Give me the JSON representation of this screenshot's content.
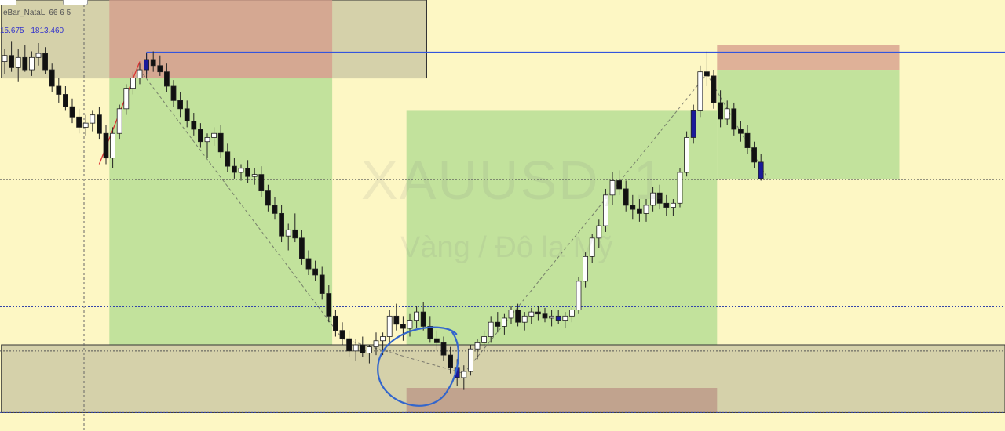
{
  "header": {
    "indicator_label": "eBar_NataLi 66 6 5",
    "readout_values": [
      "15.675",
      "1813.460"
    ]
  },
  "watermark": {
    "symbol": "XAUUSD, 1",
    "description": "Vàng / Đô la Mỹ"
  },
  "colors": {
    "background": "#fdf7c4",
    "target_zone": "#a8d88c",
    "stop_zone": "#d49a8a",
    "supply_zone": "#8a8a7a",
    "blue_line": "#3355dd",
    "bull_candle": "#ffffff",
    "bear_candle": "#111111",
    "blue_candle": "#1a1a9a",
    "circle": "#3366cc"
  },
  "chart_data": {
    "type": "candlestick",
    "symbol": "XAUUSD",
    "timeframe": "1",
    "title": "XAUUSD, 1",
    "subtitle": "Vàng / Đô la Mỹ",
    "ylim": [
      1795.0,
      1816.0
    ],
    "readout": [
      15.675,
      1813.46
    ],
    "grid": false,
    "blue_level": 1813.46,
    "levels": [
      1812.2,
      1807.25,
      1801.05,
      1798.9,
      1795.9
    ],
    "candles": [
      [
        1813.0,
        1813.6,
        1812.4,
        1813.3
      ],
      [
        1813.3,
        1814.0,
        1812.5,
        1812.7
      ],
      [
        1812.7,
        1813.6,
        1812.0,
        1813.2
      ],
      [
        1813.2,
        1813.8,
        1812.5,
        1812.6
      ],
      [
        1812.6,
        1813.5,
        1812.3,
        1813.2
      ],
      [
        1813.2,
        1813.9,
        1812.8,
        1813.4
      ],
      [
        1813.4,
        1813.7,
        1812.4,
        1812.6
      ],
      [
        1812.6,
        1812.9,
        1811.5,
        1811.8
      ],
      [
        1811.8,
        1812.2,
        1811.0,
        1811.4
      ],
      [
        1811.4,
        1811.8,
        1810.6,
        1810.8
      ],
      [
        1810.8,
        1811.2,
        1810.0,
        1810.3
      ],
      [
        1810.3,
        1810.7,
        1809.5,
        1809.8
      ],
      [
        1809.8,
        1810.4,
        1809.4,
        1810.0
      ],
      [
        1810.0,
        1810.6,
        1809.6,
        1810.4
      ],
      [
        1810.4,
        1810.8,
        1809.2,
        1809.5
      ],
      [
        1809.5,
        1809.9,
        1808.0,
        1808.3
      ],
      [
        1808.3,
        1809.8,
        1807.8,
        1809.5
      ],
      [
        1809.5,
        1810.9,
        1809.2,
        1810.7
      ],
      [
        1810.7,
        1811.9,
        1810.4,
        1811.7
      ],
      [
        1811.7,
        1812.5,
        1811.4,
        1812.2
      ],
      [
        1812.2,
        1812.9,
        1811.9,
        1812.6
      ],
      [
        1812.6,
        1813.4,
        1812.2,
        1813.1
      ],
      [
        1813.1,
        1813.5,
        1812.5,
        1812.8
      ],
      [
        1812.8,
        1813.3,
        1812.3,
        1812.5
      ],
      [
        1812.5,
        1812.9,
        1811.5,
        1811.8
      ],
      [
        1811.8,
        1812.1,
        1810.8,
        1811.1
      ],
      [
        1811.1,
        1811.5,
        1810.3,
        1810.7
      ],
      [
        1810.7,
        1811.1,
        1809.8,
        1810.1
      ],
      [
        1810.1,
        1810.5,
        1809.4,
        1809.7
      ],
      [
        1809.7,
        1810.0,
        1808.8,
        1809.1
      ],
      [
        1809.1,
        1809.5,
        1808.3,
        1809.3
      ],
      [
        1809.3,
        1809.8,
        1808.9,
        1809.5
      ],
      [
        1809.5,
        1809.9,
        1808.3,
        1808.6
      ],
      [
        1808.6,
        1809.0,
        1807.6,
        1807.9
      ],
      [
        1807.9,
        1808.3,
        1807.3,
        1807.6
      ],
      [
        1807.6,
        1808.0,
        1807.2,
        1807.8
      ],
      [
        1807.8,
        1808.2,
        1807.1,
        1807.4
      ],
      [
        1807.4,
        1807.8,
        1807.0,
        1807.5
      ],
      [
        1807.5,
        1807.9,
        1806.4,
        1806.7
      ],
      [
        1806.7,
        1807.0,
        1805.7,
        1806.0
      ],
      [
        1806.0,
        1806.4,
        1805.3,
        1805.6
      ],
      [
        1805.6,
        1806.0,
        1804.2,
        1804.5
      ],
      [
        1804.5,
        1805.1,
        1803.8,
        1804.8
      ],
      [
        1804.8,
        1805.6,
        1804.2,
        1804.4
      ],
      [
        1804.4,
        1804.8,
        1803.1,
        1803.4
      ],
      [
        1803.4,
        1803.8,
        1802.6,
        1802.9
      ],
      [
        1802.9,
        1803.3,
        1802.3,
        1802.6
      ],
      [
        1802.6,
        1803.0,
        1801.4,
        1801.7
      ],
      [
        1801.7,
        1802.1,
        1800.3,
        1800.6
      ],
      [
        1800.6,
        1800.9,
        1799.6,
        1799.9
      ],
      [
        1799.9,
        1800.3,
        1799.2,
        1799.5
      ],
      [
        1799.5,
        1799.9,
        1798.6,
        1798.9
      ],
      [
        1798.9,
        1799.5,
        1798.4,
        1799.2
      ],
      [
        1799.2,
        1799.6,
        1798.6,
        1798.8
      ],
      [
        1798.8,
        1799.2,
        1798.3,
        1799.1
      ],
      [
        1799.1,
        1799.8,
        1798.7,
        1799.4
      ],
      [
        1799.4,
        1799.8,
        1798.7,
        1799.6
      ],
      [
        1799.6,
        1800.9,
        1799.3,
        1800.6
      ],
      [
        1800.6,
        1801.2,
        1799.9,
        1800.2
      ],
      [
        1800.2,
        1800.6,
        1799.4,
        1800.0
      ],
      [
        1800.0,
        1800.7,
        1799.6,
        1800.4
      ],
      [
        1800.4,
        1801.1,
        1800.0,
        1800.8
      ],
      [
        1800.8,
        1801.3,
        1799.9,
        1800.1
      ],
      [
        1800.1,
        1800.6,
        1799.3,
        1799.5
      ],
      [
        1799.5,
        1799.9,
        1798.9,
        1799.3
      ],
      [
        1799.3,
        1799.6,
        1798.4,
        1798.7
      ],
      [
        1798.7,
        1799.1,
        1797.8,
        1798.1
      ],
      [
        1798.1,
        1798.5,
        1797.2,
        1797.6
      ],
      [
        1797.6,
        1798.2,
        1797.0,
        1797.9
      ],
      [
        1797.9,
        1799.2,
        1797.7,
        1799.0
      ],
      [
        1799.0,
        1799.5,
        1798.5,
        1799.3
      ],
      [
        1799.3,
        1799.9,
        1798.9,
        1799.6
      ],
      [
        1799.6,
        1800.6,
        1799.3,
        1800.3
      ],
      [
        1800.3,
        1800.8,
        1799.8,
        1800.1
      ],
      [
        1800.1,
        1800.7,
        1799.7,
        1800.5
      ],
      [
        1800.5,
        1801.1,
        1800.2,
        1800.9
      ],
      [
        1800.9,
        1801.2,
        1800.1,
        1800.3
      ],
      [
        1800.3,
        1800.8,
        1799.9,
        1800.6
      ],
      [
        1800.6,
        1801.0,
        1800.2,
        1800.8
      ],
      [
        1800.8,
        1801.1,
        1800.4,
        1800.7
      ],
      [
        1800.7,
        1801.0,
        1800.3,
        1800.5
      ],
      [
        1800.5,
        1800.9,
        1800.1,
        1800.6
      ],
      [
        1800.6,
        1800.9,
        1800.2,
        1800.4
      ],
      [
        1800.4,
        1800.8,
        1800.0,
        1800.6
      ],
      [
        1800.6,
        1801.0,
        1800.3,
        1800.9
      ],
      [
        1800.9,
        1802.5,
        1800.7,
        1802.3
      ],
      [
        1802.3,
        1803.7,
        1802.0,
        1803.5
      ],
      [
        1803.5,
        1804.6,
        1803.2,
        1804.4
      ],
      [
        1804.4,
        1805.3,
        1803.9,
        1805.0
      ],
      [
        1805.0,
        1806.8,
        1804.7,
        1806.5
      ],
      [
        1806.5,
        1807.6,
        1806.0,
        1807.2
      ],
      [
        1807.2,
        1807.7,
        1806.5,
        1806.8
      ],
      [
        1806.8,
        1807.2,
        1805.7,
        1806.0
      ],
      [
        1806.0,
        1806.5,
        1805.3,
        1805.8
      ],
      [
        1805.8,
        1806.3,
        1805.2,
        1805.6
      ],
      [
        1805.6,
        1806.3,
        1805.2,
        1806.0
      ],
      [
        1806.0,
        1806.9,
        1805.7,
        1806.6
      ],
      [
        1806.6,
        1807.0,
        1805.8,
        1806.1
      ],
      [
        1806.1,
        1806.5,
        1805.5,
        1805.9
      ],
      [
        1805.9,
        1806.3,
        1805.5,
        1806.1
      ],
      [
        1806.1,
        1807.8,
        1805.9,
        1807.6
      ],
      [
        1807.6,
        1809.6,
        1807.4,
        1809.3
      ],
      [
        1809.3,
        1810.9,
        1809.0,
        1810.6
      ],
      [
        1810.6,
        1812.8,
        1810.3,
        1812.5
      ],
      [
        1812.5,
        1813.5,
        1811.8,
        1812.3
      ],
      [
        1812.3,
        1812.6,
        1810.7,
        1811.0
      ],
      [
        1811.0,
        1811.6,
        1809.8,
        1810.2
      ],
      [
        1810.2,
        1811.1,
        1809.9,
        1810.7
      ],
      [
        1810.7,
        1811.0,
        1809.4,
        1809.7
      ],
      [
        1809.7,
        1810.1,
        1809.1,
        1809.5
      ],
      [
        1809.5,
        1809.9,
        1808.5,
        1808.8
      ],
      [
        1808.8,
        1809.1,
        1807.8,
        1808.1
      ],
      [
        1808.1,
        1808.5,
        1807.2,
        1807.3
      ]
    ],
    "blue_candle_indices": [
      21,
      67,
      82,
      102,
      112
    ],
    "zones": [
      {
        "type": "supply",
        "from_index": 0,
        "to_index": 62,
        "top": 1816.0,
        "bottom": 1812.2
      },
      {
        "type": "stop",
        "from_index": 16,
        "to_index": 48,
        "top": 1816.0,
        "bottom": 1812.2
      },
      {
        "type": "target",
        "from_index": 16,
        "to_index": 48,
        "top": 1812.2,
        "bottom": 1799.2
      },
      {
        "type": "target",
        "from_index": 60,
        "to_index": 105,
        "top": 1810.6,
        "bottom": 1799.2
      },
      {
        "type": "stop",
        "from_index": 60,
        "to_index": 105,
        "top": 1797.1,
        "bottom": 1795.9
      },
      {
        "type": "supply",
        "from_index": 0,
        "to_index": 999,
        "top": 1799.2,
        "bottom": 1795.9
      },
      {
        "type": "stop",
        "from_index": 106,
        "to_index": 132,
        "top": 1813.8,
        "bottom": 1812.6
      },
      {
        "type": "target",
        "from_index": 106,
        "to_index": 132,
        "top": 1812.6,
        "bottom": 1807.25
      }
    ]
  }
}
